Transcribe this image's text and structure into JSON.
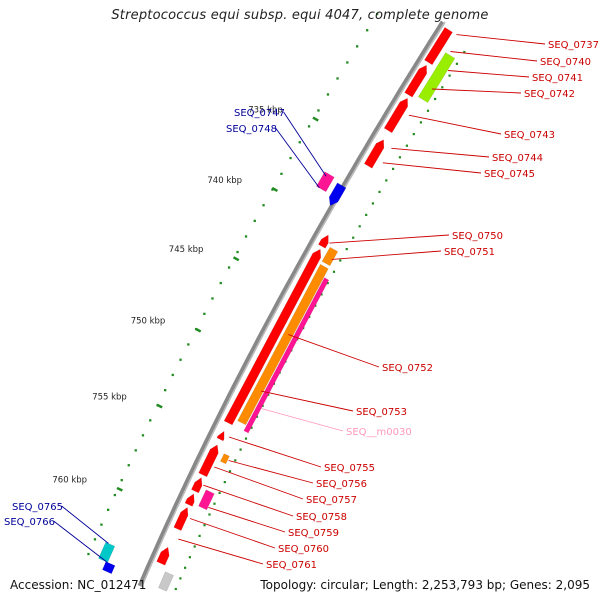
{
  "title": "Streptococcus equi subsp. equi 4047, complete genome",
  "accession": "Accession: NC_012471",
  "topology": "Topology: circular; Length: 2,253,793 bp; Genes: 2,095",
  "colors": {
    "red": "#ff0000",
    "orange": "#ff8c00",
    "pink": "#ff1493",
    "lime": "#99ee00",
    "blue": "#0000ee",
    "cyan": "#00c8c8",
    "gray": "#c8c8c8",
    "label_red": "#cc0000",
    "label_blue": "#000099",
    "label_pink": "#ff99bb",
    "tick_green": "#228b22",
    "backbone": "#888888"
  },
  "scale": {
    "ticks": [
      {
        "label": "735 kbp"
      },
      {
        "label": "740 kbp"
      },
      {
        "label": "745 kbp"
      },
      {
        "label": "750 kbp"
      },
      {
        "label": "755 kbp"
      },
      {
        "label": "760 kbp"
      }
    ]
  },
  "genes": {
    "right": [
      {
        "label": "SEQ_0737",
        "color_key": "red"
      },
      {
        "label": "SEQ_0740",
        "color_key": "red"
      },
      {
        "label": "SEQ_0741",
        "color_key": "lime"
      },
      {
        "label": "SEQ_0742",
        "color_key": "lime"
      },
      {
        "label": "SEQ_0743",
        "color_key": "red"
      },
      {
        "label": "SEQ_0744",
        "color_key": "red"
      },
      {
        "label": "SEQ_0745",
        "color_key": "red"
      },
      {
        "label": "SEQ_0750",
        "color_key": "red"
      },
      {
        "label": "SEQ_0751",
        "color_key": "orange"
      },
      {
        "label": "SEQ_0752",
        "color_key": "red"
      },
      {
        "label": "SEQ_0753",
        "color_key": "pink"
      },
      {
        "label": "SEQ__m0030",
        "color_key": "pink"
      },
      {
        "label": "SEQ_0755",
        "color_key": "red"
      },
      {
        "label": "SEQ_0756",
        "color_key": "orange"
      },
      {
        "label": "SEQ_0757",
        "color_key": "red"
      },
      {
        "label": "SEQ_0758",
        "color_key": "red"
      },
      {
        "label": "SEQ_0759",
        "color_key": "pink"
      },
      {
        "label": "SEQ_0760",
        "color_key": "red"
      },
      {
        "label": "SEQ_0761",
        "color_key": "red"
      }
    ],
    "left": [
      {
        "label": "SEQ_0747",
        "color_key": "pink"
      },
      {
        "label": "SEQ_0748",
        "color_key": "blue"
      },
      {
        "label": "SEQ_0765",
        "color_key": "cyan"
      },
      {
        "label": "SEQ_0766",
        "color_key": "blue"
      }
    ]
  }
}
